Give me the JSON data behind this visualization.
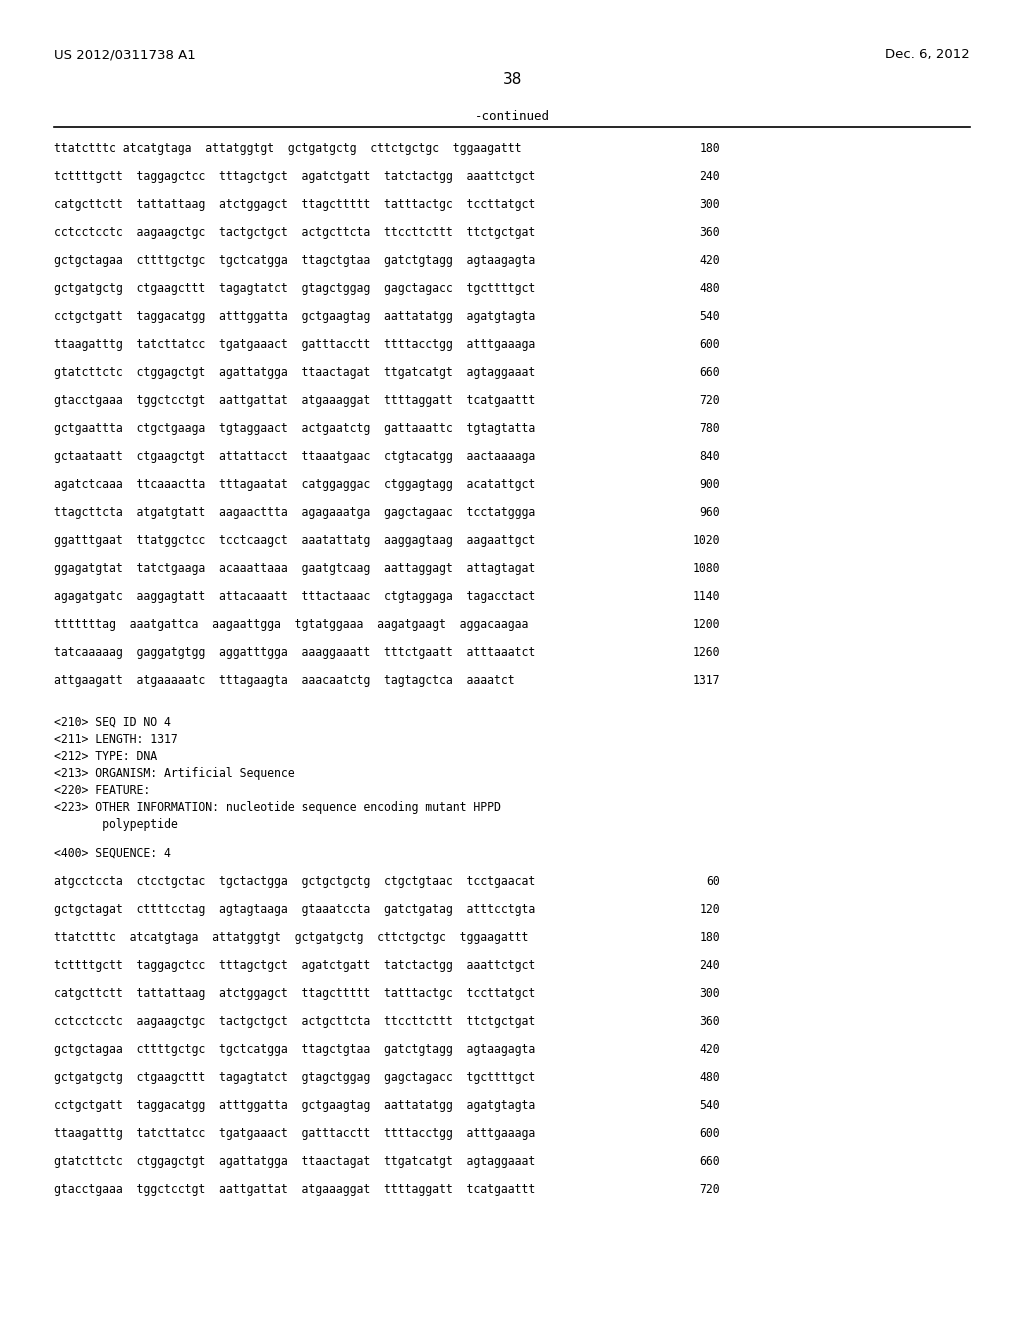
{
  "header_left": "US 2012/0311738 A1",
  "header_right": "Dec. 6, 2012",
  "page_number": "38",
  "continued_label": "-continued",
  "background_color": "#ffffff",
  "text_color": "#000000",
  "sequence_lines_top": [
    [
      "ttatctttc atcatgtaga  attatggtgt  gctgatgctg  cttctgctgc  tggaagattt",
      "180"
    ],
    [
      "tcttttgctt  taggagctcc  tttagctgct  agatctgatt  tatctactgg  aaattctgct",
      "240"
    ],
    [
      "catgcttctt  tattattaag  atctggagct  ttagcttttt  tatttactgc  tccttatgct",
      "300"
    ],
    [
      "cctcctcctc  aagaagctgc  tactgctgct  actgcttcta  ttccttcttt  ttctgctgat",
      "360"
    ],
    [
      "gctgctagaa  cttttgctgc  tgctcatgga  ttagctgtaa  gatctgtagg  agtaagagta",
      "420"
    ],
    [
      "gctgatgctg  ctgaagcttt  tagagtatct  gtagctggag  gagctagacc  tgcttttgct",
      "480"
    ],
    [
      "cctgctgatt  taggacatgg  atttggatta  gctgaagtag  aattatatgg  agatgtagta",
      "540"
    ],
    [
      "ttaagatttg  tatcttatcc  tgatgaaact  gatttacctt  ttttacctgg  atttgaaaga",
      "600"
    ],
    [
      "gtatcttctc  ctggagctgt  agattatgga  ttaactagat  ttgatcatgt  agtaggaaat",
      "660"
    ],
    [
      "gtacctgaaa  tggctcctgt  aattgattat  atgaaaggat  ttttaggatt  tcatgaattt",
      "720"
    ],
    [
      "gctgaattta  ctgctgaaga  tgtaggaact  actgaatctg  gattaaattc  tgtagtatta",
      "780"
    ],
    [
      "gctaataatt  ctgaagctgt  attattacct  ttaaatgaac  ctgtacatgg  aactaaaaga",
      "840"
    ],
    [
      "agatctcaaa  ttcaaactta  tttagaatat  catggaggac  ctggagtagg  acatattgct",
      "900"
    ],
    [
      "ttagcttcta  atgatgtatt  aagaacttta  agagaaatga  gagctagaac  tcctatggga",
      "960"
    ],
    [
      "ggatttgaat  ttatggctcc  tcctcaagct  aaatattatg  aaggagtaag  aagaattgct",
      "1020"
    ],
    [
      "ggagatgtat  tatctgaaga  acaaattaaa  gaatgtcaag  aattaggagt  attagtagat",
      "1080"
    ],
    [
      "agagatgatc  aaggagtatt  attacaaatt  tttactaaac  ctgtaggaga  tagacctact",
      "1140"
    ],
    [
      "tttttttag  aaatgattca  aagaattgga  tgtatggaaa  aagatgaagt  aggacaagaa",
      "1200"
    ],
    [
      "tatcaaaaag  gaggatgtgg  aggatttgga  aaaggaaatt  tttctgaatt  atttaaatct",
      "1260"
    ],
    [
      "attgaagatt  atgaaaaatc  tttagaagta  aaacaatctg  tagtagctca  aaaatct",
      "1317"
    ]
  ],
  "metadata_lines": [
    "<210> SEQ ID NO 4",
    "<211> LENGTH: 1317",
    "<212> TYPE: DNA",
    "<213> ORGANISM: Artificial Sequence",
    "<220> FEATURE:",
    "<223> OTHER INFORMATION: nucleotide sequence encoding mutant HPPD",
    "       polypeptide"
  ],
  "sequence4_label": "<400> SEQUENCE: 4",
  "sequence4_lines": [
    [
      "atgcctccta  ctcctgctac  tgctactgga  gctgctgctg  ctgctgtaac  tcctgaacat",
      "60"
    ],
    [
      "gctgctagat  cttttcctag  agtagtaaga  gtaaatccta  gatctgatag  atttcctgta",
      "120"
    ],
    [
      "ttatctttc  atcatgtaga  attatggtgt  gctgatgctg  cttctgctgc  tggaagattt",
      "180"
    ],
    [
      "tcttttgctt  taggagctcc  tttagctgct  agatctgatt  tatctactgg  aaattctgct",
      "240"
    ],
    [
      "catgcttctt  tattattaag  atctggagct  ttagcttttt  tatttactgc  tccttatgct",
      "300"
    ],
    [
      "cctcctcctc  aagaagctgc  tactgctgct  actgcttcta  ttccttcttt  ttctgctgat",
      "360"
    ],
    [
      "gctgctagaa  cttttgctgc  tgctcatgga  ttagctgtaa  gatctgtagg  agtaagagta",
      "420"
    ],
    [
      "gctgatgctg  ctgaagcttt  tagagtatct  gtagctggag  gagctagacc  tgcttttgct",
      "480"
    ],
    [
      "cctgctgatt  taggacatgg  atttggatta  gctgaagtag  aattatatgg  agatgtagta",
      "540"
    ],
    [
      "ttaagatttg  tatcttatcc  tgatgaaact  gatttacctt  ttttacctgg  atttgaaaga",
      "600"
    ],
    [
      "gtatcttctc  ctggagctgt  agattatgga  ttaactagat  ttgatcatgt  agtaggaaat",
      "660"
    ],
    [
      "gtacctgaaa  tggctcctgt  aattgattat  atgaaaggat  ttttaggatt  tcatgaattt",
      "720"
    ]
  ]
}
